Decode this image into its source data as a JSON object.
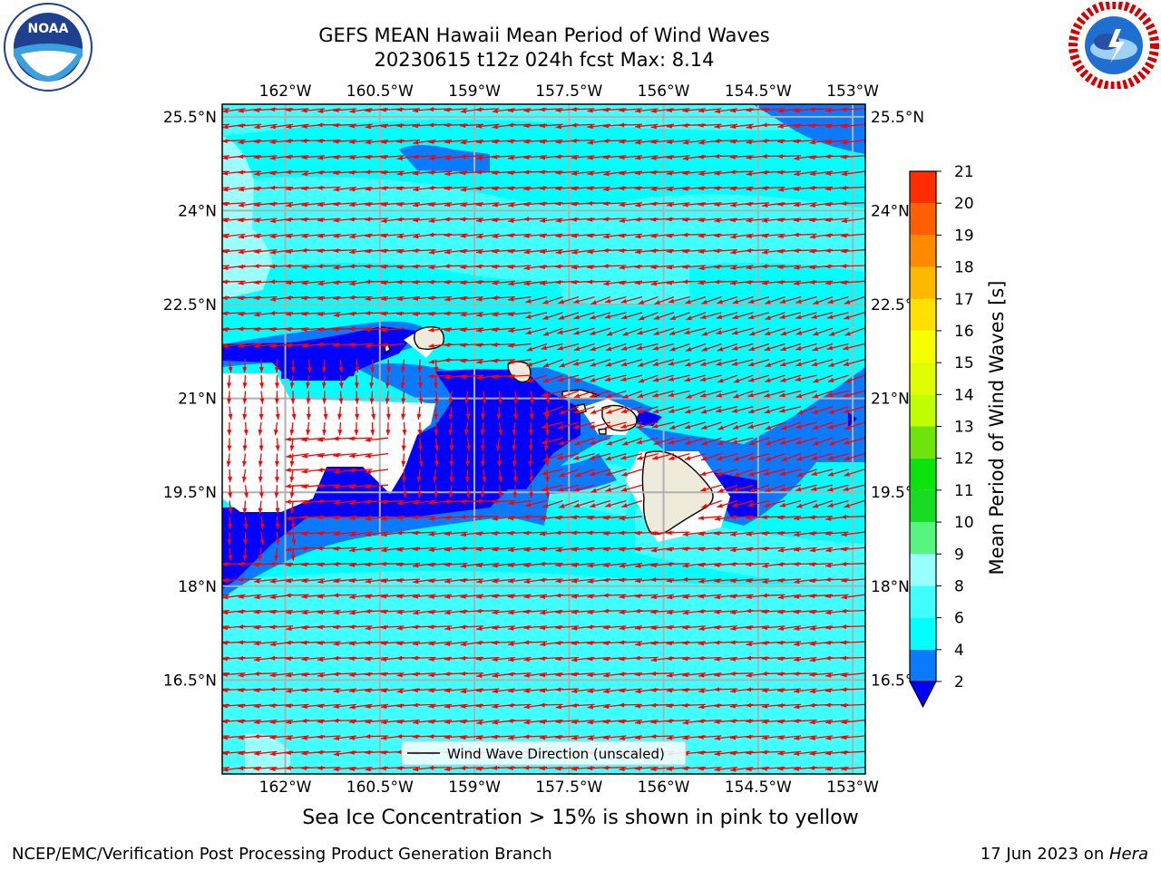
{
  "header": {
    "title_line1": "GEFS MEAN Hawaii Mean Period of Wind Waves",
    "title_line2": "20230615 t12z 024h fcst   Max: 8.14"
  },
  "logos": {
    "left": {
      "name": "noaa-logo",
      "text": "NOAA",
      "ring_text": "NATIONAL OCEANIC AND ATMOSPHERIC ADMINISTRATION · U.S. DEPARTMENT OF COMMERCE"
    },
    "right": {
      "name": "nws-logo",
      "ring_text": "NATIONAL WEATHER SERVICE"
    }
  },
  "map": {
    "lon_ticks": [
      "162°W",
      "160.5°W",
      "159°W",
      "157.5°W",
      "156°W",
      "154.5°W",
      "153°W"
    ],
    "lon_values": [
      -162,
      -160.5,
      -159,
      -157.5,
      -156,
      -154.5,
      -153
    ],
    "lat_ticks": [
      "25.5°N",
      "24°N",
      "22.5°N",
      "21°N",
      "19.5°N",
      "18°N",
      "16.5°N"
    ],
    "lat_values": [
      25.5,
      24,
      22.5,
      21,
      19.5,
      18,
      16.5
    ],
    "lon_range": [
      -163,
      -152.8
    ],
    "lat_range": [
      15,
      25.7
    ],
    "legend_label": "Wind Wave Direction (unscaled)",
    "arrow_color": "#ff0000",
    "grid": true
  },
  "colorbar": {
    "label": "Mean Period of Wind Waves [s]",
    "ticks": [
      "2",
      "4",
      "6",
      "8",
      "9",
      "10",
      "11",
      "12",
      "13",
      "14",
      "15",
      "16",
      "17",
      "18",
      "19",
      "20",
      "21"
    ],
    "levels": [
      2,
      4,
      6,
      8,
      9,
      10,
      11,
      12,
      13,
      14,
      15,
      16,
      17,
      18,
      19,
      20,
      21
    ],
    "colors": [
      "#0a7aff",
      "#00ffff",
      "#40ffff",
      "#99ffff",
      "#55f57f",
      "#18db24",
      "#0ce30c",
      "#6ee30c",
      "#bfff00",
      "#dfff00",
      "#f5ff00",
      "#ffe000",
      "#ffb800",
      "#ff8a00",
      "#ff5f00",
      "#ff2c00",
      "#ff0000"
    ],
    "under_color": "#0000ff"
  },
  "footer": {
    "sea_ice_note": "Sea Ice Concentration > 15% is shown in pink to yellow",
    "left_credit": "NCEP/EMC/Verification Post Processing Product Generation Branch",
    "right_credit_date": "17 Jun 2023 on ",
    "right_credit_host": "Hera"
  }
}
